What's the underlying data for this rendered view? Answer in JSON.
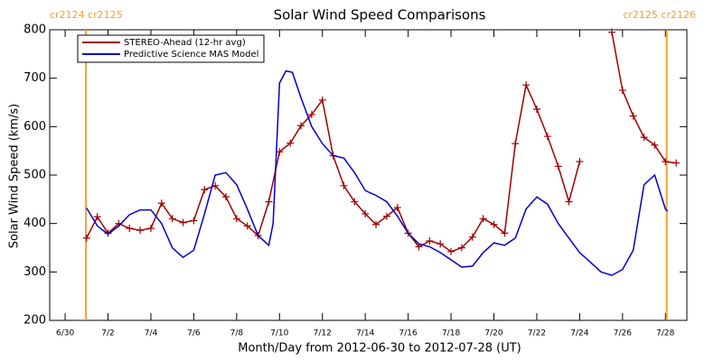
{
  "chart_data": {
    "type": "line",
    "title": "Solar Wind Speed Comparisons",
    "xlabel": "Month/Day from 2012-06-30 to 2012-07-28 (UT)",
    "ylabel": "Solar Wind Speed (km/s)",
    "annotations": [
      "cr2124 cr2125",
      "cr2125 cr2126"
    ],
    "vlines": [
      0.97,
      28.06
    ],
    "vline_color": "#f5a030",
    "xlim": [
      -0.72,
      29.0
    ],
    "ylim": [
      200,
      800
    ],
    "xticks": [
      {
        "value": 0,
        "label": "6/30"
      },
      {
        "value": 2,
        "label": "7/2"
      },
      {
        "value": 4,
        "label": "7/4"
      },
      {
        "value": 6,
        "label": "7/6"
      },
      {
        "value": 8,
        "label": "7/8"
      },
      {
        "value": 10,
        "label": "7/10"
      },
      {
        "value": 12,
        "label": "7/12"
      },
      {
        "value": 14,
        "label": "7/14"
      },
      {
        "value": 16,
        "label": "7/16"
      },
      {
        "value": 18,
        "label": "7/18"
      },
      {
        "value": 20,
        "label": "7/20"
      },
      {
        "value": 22,
        "label": "7/22"
      },
      {
        "value": 24,
        "label": "7/24"
      },
      {
        "value": 26,
        "label": "7/26"
      },
      {
        "value": 28,
        "label": "7/28"
      }
    ],
    "yticks": [
      200,
      300,
      400,
      500,
      600,
      700,
      800
    ],
    "legend": "upper left",
    "series": [
      {
        "name": "STEREO-Ahead (12-hr avg)",
        "color": "#a00000",
        "markers": true,
        "x": [
          1.0,
          1.5,
          2.0,
          2.5,
          3.0,
          3.5,
          4.0,
          4.5,
          5.0,
          5.5,
          6.0,
          6.5,
          7.0,
          7.5,
          8.0,
          8.5,
          9.0,
          9.5,
          10.0,
          10.5,
          11.0,
          11.5,
          12.0,
          12.5,
          13.0,
          13.5,
          14.0,
          14.5,
          15.0,
          15.5,
          16.0,
          16.5,
          17.0,
          17.5,
          18.0,
          18.5,
          19.0,
          19.5,
          20.0,
          20.5,
          21.0,
          21.5,
          22.0,
          22.5,
          23.0,
          23.5,
          24.0,
          24.5,
          25.0,
          25.5,
          26.0,
          26.5,
          27.0,
          27.5,
          28.0,
          28.5
        ],
        "values": [
          370,
          414,
          380,
          400,
          390,
          386,
          390,
          442,
          410,
          402,
          406,
          470,
          478,
          455,
          410,
          395,
          375,
          445,
          548,
          566,
          602,
          625,
          655,
          540,
          478,
          445,
          420,
          398,
          415,
          433,
          380,
          352,
          364,
          358,
          342,
          350,
          372,
          410,
          398,
          380,
          565,
          686,
          636,
          580,
          518,
          445,
          528,
          null,
          null,
          795,
          675,
          622,
          578,
          562,
          528,
          525
        ]
      },
      {
        "name": "Predictive Science MAS Model",
        "color": "#0000cc",
        "markers": false,
        "x": [
          1.0,
          1.5,
          2.0,
          2.5,
          3.0,
          3.5,
          4.0,
          4.5,
          5.0,
          5.5,
          6.0,
          6.5,
          7.0,
          7.5,
          8.0,
          8.5,
          9.0,
          9.5,
          9.7,
          10.0,
          10.3,
          10.6,
          11.0,
          11.5,
          12.0,
          12.5,
          13.0,
          13.5,
          14.0,
          14.5,
          15.0,
          15.5,
          16.0,
          16.5,
          17.0,
          17.5,
          18.0,
          18.5,
          19.0,
          19.5,
          20.0,
          20.5,
          21.0,
          21.5,
          22.0,
          22.5,
          23.0,
          23.5,
          24.0,
          24.5,
          25.0,
          25.5,
          26.0,
          26.5,
          27.0,
          27.5,
          28.0,
          28.1
        ],
        "values": [
          432,
          395,
          378,
          395,
          418,
          428,
          428,
          400,
          350,
          330,
          345,
          420,
          500,
          505,
          480,
          430,
          375,
          355,
          400,
          690,
          715,
          712,
          660,
          600,
          565,
          540,
          535,
          505,
          468,
          458,
          445,
          415,
          380,
          358,
          352,
          340,
          325,
          310,
          312,
          340,
          360,
          355,
          370,
          430,
          455,
          440,
          400,
          370,
          340,
          320,
          300,
          293,
          305,
          345,
          480,
          500,
          430,
          425
        ]
      }
    ]
  }
}
